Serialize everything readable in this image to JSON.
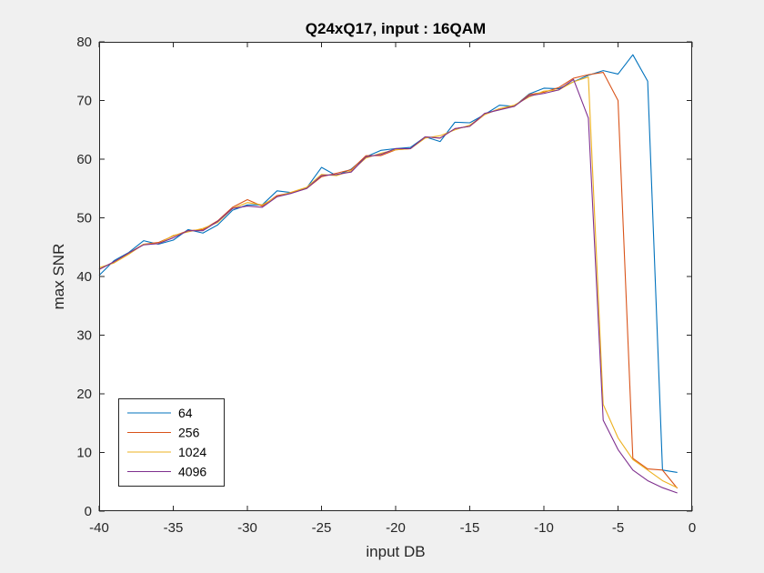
{
  "chart_data": {
    "type": "line",
    "title": "Q24xQ17, input : 16QAM",
    "xlabel": "input DB",
    "ylabel": "max SNR",
    "xlim": [
      -40,
      0
    ],
    "ylim": [
      0,
      80
    ],
    "x_ticks": [
      "-40",
      "-35",
      "-30",
      "-25",
      "-20",
      "-15",
      "-10",
      "-5",
      "0"
    ],
    "y_ticks": [
      "0",
      "10",
      "20",
      "30",
      "40",
      "50",
      "60",
      "70",
      "80"
    ],
    "grid": false,
    "legend_position": "bottom-left",
    "x": [
      -40,
      -39,
      -38,
      -37,
      -36,
      -35,
      -34,
      -33,
      -32,
      -31,
      -30,
      -29,
      -28,
      -27,
      -26,
      -25,
      -24,
      -23,
      -22,
      -21,
      -20,
      -19,
      -18,
      -17,
      -16,
      -15,
      -14,
      -13,
      -12,
      -11,
      -10,
      -9,
      -8,
      -7,
      -6,
      -5,
      -4,
      -3,
      -2,
      -1
    ],
    "series": [
      {
        "name": "64",
        "color": "#0072BD",
        "values": [
          40.2,
          42.7,
          44.1,
          46.1,
          45.5,
          46.2,
          48.0,
          47.4,
          48.8,
          51.3,
          52.2,
          52.2,
          54.6,
          54.3,
          55.1,
          58.6,
          57.2,
          58.3,
          60.4,
          61.5,
          61.8,
          62.0,
          63.8,
          63.0,
          66.3,
          66.2,
          67.6,
          69.2,
          69.0,
          71.1,
          72.1,
          72.0,
          73.2,
          74.3,
          75.1,
          74.5,
          77.8,
          73.3,
          7.0,
          6.6
        ]
      },
      {
        "name": "256",
        "color": "#D95319",
        "values": [
          41.2,
          42.5,
          44.0,
          45.5,
          45.8,
          46.9,
          47.8,
          48.0,
          49.5,
          51.8,
          53.1,
          52.0,
          53.8,
          54.3,
          55.0,
          57.0,
          57.6,
          58.2,
          60.6,
          60.6,
          61.6,
          61.8,
          63.8,
          63.6,
          65.2,
          65.6,
          67.6,
          68.6,
          69.0,
          71.0,
          71.4,
          72.2,
          73.8,
          74.4,
          74.8,
          70.0,
          9.0,
          7.2,
          7.0,
          3.9
        ]
      },
      {
        "name": "1024",
        "color": "#EDB120",
        "values": [
          41.5,
          42.3,
          43.8,
          45.5,
          45.6,
          47.0,
          47.6,
          48.2,
          49.2,
          51.6,
          52.6,
          52.2,
          53.6,
          54.4,
          55.2,
          57.4,
          57.2,
          58.0,
          60.2,
          61.0,
          61.6,
          61.8,
          63.6,
          64.0,
          65.0,
          65.8,
          67.6,
          68.6,
          69.2,
          70.6,
          71.6,
          71.8,
          73.2,
          74.0,
          18.2,
          12.5,
          8.8,
          7.0,
          5.2,
          4.0
        ]
      },
      {
        "name": "4096",
        "color": "#7E2F8E",
        "values": [
          41.2,
          42.5,
          44.0,
          45.4,
          45.6,
          46.6,
          47.8,
          47.8,
          49.4,
          51.6,
          52.0,
          51.8,
          53.6,
          54.2,
          55.0,
          57.2,
          57.4,
          57.8,
          60.4,
          60.8,
          61.8,
          61.8,
          63.8,
          63.6,
          65.2,
          65.6,
          67.8,
          68.4,
          69.0,
          70.8,
          71.2,
          71.8,
          73.6,
          67.0,
          15.5,
          10.5,
          7.0,
          5.2,
          4.0,
          3.1
        ]
      }
    ]
  }
}
